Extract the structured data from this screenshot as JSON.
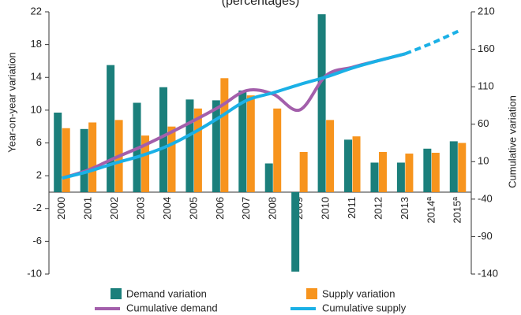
{
  "chart_data": {
    "type": "bar-line",
    "title": "(percentages)",
    "categories": [
      "2000",
      "2001",
      "2002",
      "2003",
      "2004",
      "2005",
      "2006",
      "2007",
      "2008",
      "2009",
      "2010",
      "2011",
      "2012",
      "2013",
      "2014ª",
      "2015ª"
    ],
    "series": [
      {
        "name": "Demand variation",
        "color": "#1b7f7b",
        "kind": "bar",
        "values": [
          9.7,
          7.7,
          15.5,
          10.9,
          12.8,
          11.3,
          11.2,
          12.4,
          3.5,
          -9.7,
          21.7,
          6.4,
          3.6,
          3.6,
          5.3,
          6.2
        ]
      },
      {
        "name": "Supply variation",
        "color": "#f7941d",
        "kind": "bar",
        "values": [
          7.8,
          8.5,
          8.8,
          6.9,
          8.0,
          10.2,
          13.9,
          11.8,
          10.2,
          4.9,
          8.8,
          6.8,
          4.9,
          4.7,
          4.8,
          6.0
        ]
      },
      {
        "name": "Cumulative demand",
        "color": "#a35fab",
        "kind": "line",
        "axis": "y2",
        "values": [
          -12,
          -1,
          15,
          30,
          47,
          65,
          84,
          105,
          100,
          79,
          125,
          136,
          145,
          154,
          null,
          null
        ]
      },
      {
        "name": "Cumulative supply",
        "color": "#1ab0e6",
        "kind": "line",
        "axis": "y2",
        "values": [
          -12,
          -3,
          8,
          18,
          31,
          49,
          70,
          92,
          102,
          113,
          123,
          135,
          145,
          154,
          168,
          184
        ]
      }
    ],
    "projection_start": "2013",
    "ylabel": "Year-on-year variation",
    "y2label": "Cumulative variation",
    "ylim": [
      -10,
      22
    ],
    "yticks": [
      -10,
      -6,
      -2,
      2,
      6,
      10,
      14,
      18,
      22
    ],
    "y2lim": [
      -140,
      210
    ],
    "y2ticks": [
      -140,
      -90,
      -40,
      10,
      60,
      110,
      160,
      210
    ]
  }
}
